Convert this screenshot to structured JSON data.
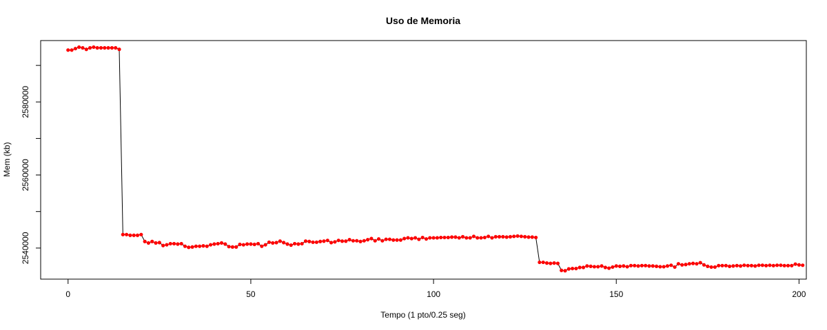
{
  "chart_data": {
    "type": "line",
    "title": "Uso de Memoria",
    "xlabel": "Tempo (1 pto/0.25 seg)",
    "ylabel": "Mem (kb)",
    "xlim": [
      -7.5,
      202
    ],
    "ylim": [
      2531500,
      2596800
    ],
    "x_ticks": [
      0,
      50,
      100,
      150,
      200
    ],
    "y_ticks": [
      2540000,
      2560000,
      2580000
    ],
    "y_minor_ticks": [
      2540000,
      2550000,
      2560000,
      2570000,
      2580000,
      2590000
    ],
    "line_color": "#000000",
    "point_color": "#ff0000",
    "grid": false,
    "legend": "none",
    "series": [
      {
        "x_start": 0,
        "values": [
          2594200,
          2594200,
          2594600,
          2595000,
          2594800,
          2594400,
          2594800,
          2595000,
          2594800,
          2594800,
          2594800,
          2594800,
          2594800,
          2594800,
          2594400,
          2543700,
          2543700,
          2543500,
          2543500,
          2543500,
          2543700,
          2541800,
          2541400,
          2541800,
          2541400,
          2541500,
          2540700,
          2540900,
          2541200,
          2541200,
          2541100,
          2541200,
          2540500,
          2540200,
          2540300,
          2540500,
          2540500,
          2540600,
          2540500,
          2540900,
          2541100,
          2541200,
          2541400,
          2541100,
          2540400,
          2540300,
          2540300,
          2541000,
          2540900,
          2541100,
          2541100,
          2541000,
          2541200,
          2540500,
          2540900,
          2541600,
          2541400,
          2541500,
          2541900,
          2541500,
          2541100,
          2540800,
          2541200,
          2541100,
          2541200,
          2541900,
          2541800,
          2541600,
          2541600,
          2541800,
          2541900,
          2542100,
          2541500,
          2541700,
          2542100,
          2541900,
          2541900,
          2542300,
          2542000,
          2542000,
          2541800,
          2542000,
          2542300,
          2542600,
          2542000,
          2542500,
          2542000,
          2542400,
          2542400,
          2542200,
          2542200,
          2542200,
          2542600,
          2542800,
          2542600,
          2542800,
          2542400,
          2542900,
          2542500,
          2542800,
          2542800,
          2542800,
          2542900,
          2542900,
          2542900,
          2543000,
          2543000,
          2542800,
          2543100,
          2542800,
          2542800,
          2543200,
          2542800,
          2542800,
          2542900,
          2543200,
          2542800,
          2543100,
          2543100,
          2543100,
          2543000,
          2543100,
          2543200,
          2543300,
          2543200,
          2543100,
          2543000,
          2543000,
          2542900,
          2536100,
          2536100,
          2535900,
          2535800,
          2535900,
          2535800,
          2533900,
          2533800,
          2534300,
          2534400,
          2534400,
          2534700,
          2534700,
          2535100,
          2535000,
          2534900,
          2534900,
          2535100,
          2534700,
          2534500,
          2534800,
          2535100,
          2535000,
          2535100,
          2534900,
          2535200,
          2535200,
          2535100,
          2535200,
          2535200,
          2535100,
          2535100,
          2535000,
          2534900,
          2534900,
          2535100,
          2535300,
          2534800,
          2535700,
          2535400,
          2535500,
          2535700,
          2535800,
          2535700,
          2536000,
          2535400,
          2535000,
          2534800,
          2534800,
          2535200,
          2535200,
          2535200,
          2535000,
          2535100,
          2535200,
          2535100,
          2535300,
          2535200,
          2535200,
          2535100,
          2535300,
          2535300,
          2535200,
          2535300,
          2535200,
          2535300,
          2535300,
          2535200,
          2535200,
          2535200,
          2535600,
          2535400,
          2535300
        ]
      }
    ]
  }
}
